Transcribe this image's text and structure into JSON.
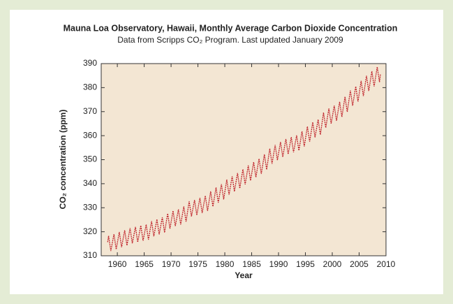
{
  "chart_data": {
    "type": "line",
    "title": "Mauna Loa Observatory, Hawaii, Monthly Average Carbon Dioxide Concentration",
    "subtitle": "Data from Scripps CO₂ Program.   Last updated January 2009",
    "x_label": "Year",
    "y_label": "CO₂ concentration (ppm)",
    "xlim": [
      1957,
      2010
    ],
    "xticks": [
      1960,
      1965,
      1970,
      1975,
      1980,
      1985,
      1990,
      1995,
      2000,
      2005,
      2010
    ],
    "ylim": [
      310,
      390
    ],
    "yticks": [
      310,
      320,
      330,
      340,
      350,
      360,
      370,
      380,
      390
    ],
    "color": "#c0262d",
    "x": [
      1958.2,
      1958.37,
      1958.79,
      1959.37,
      1959.79,
      1960.37,
      1960.79,
      1961.37,
      1961.79,
      1962.37,
      1962.79,
      1963.37,
      1963.79,
      1964.37,
      1964.79,
      1965.37,
      1965.79,
      1966.37,
      1966.79,
      1967.37,
      1967.79,
      1968.37,
      1968.79,
      1969.37,
      1969.79,
      1970.37,
      1970.79,
      1971.37,
      1971.79,
      1972.37,
      1972.79,
      1973.37,
      1973.79,
      1974.37,
      1974.79,
      1975.37,
      1975.79,
      1976.37,
      1976.79,
      1977.37,
      1977.79,
      1978.37,
      1978.79,
      1979.37,
      1979.79,
      1980.37,
      1980.79,
      1981.37,
      1981.79,
      1982.37,
      1982.79,
      1983.37,
      1983.79,
      1984.37,
      1984.79,
      1985.37,
      1985.79,
      1986.37,
      1986.79,
      1987.37,
      1987.79,
      1988.37,
      1988.79,
      1989.37,
      1989.79,
      1990.37,
      1990.79,
      1991.37,
      1991.79,
      1992.37,
      1992.79,
      1993.37,
      1993.79,
      1994.37,
      1994.79,
      1995.37,
      1995.79,
      1996.37,
      1996.79,
      1997.37,
      1997.79,
      1998.37,
      1998.79,
      1999.37,
      1999.79,
      2000.37,
      2000.79,
      2001.37,
      2001.79,
      2002.37,
      2002.79,
      2003.37,
      2003.79,
      2004.37,
      2004.79,
      2005.37,
      2005.79,
      2006.37,
      2006.79,
      2007.37,
      2007.79,
      2008.37,
      2008.79,
      2008.96
    ],
    "values": [
      315.7,
      318.3,
      312.0,
      319.0,
      312.7,
      319.9,
      313.6,
      320.6,
      314.3,
      321.5,
      315.2,
      322.0,
      315.7,
      322.6,
      316.3,
      323.0,
      316.7,
      324.4,
      318.1,
      325.2,
      318.9,
      326.0,
      319.7,
      327.6,
      321.3,
      328.7,
      322.4,
      329.3,
      323.0,
      330.5,
      324.2,
      332.7,
      326.4,
      333.2,
      326.9,
      334.1,
      327.8,
      335.0,
      328.7,
      336.8,
      330.5,
      338.4,
      332.1,
      339.8,
      333.5,
      341.7,
      335.4,
      343.1,
      336.8,
      344.4,
      338.1,
      346.0,
      339.7,
      347.6,
      341.3,
      349.0,
      342.7,
      350.4,
      344.1,
      352.2,
      345.9,
      354.6,
      348.3,
      356.1,
      349.8,
      357.4,
      351.1,
      358.6,
      352.3,
      359.4,
      353.1,
      360.1,
      353.8,
      361.8,
      355.5,
      363.8,
      357.5,
      365.6,
      359.3,
      366.7,
      360.4,
      369.6,
      363.3,
      371.3,
      365.0,
      372.5,
      366.2,
      374.1,
      367.8,
      376.2,
      369.9,
      378.8,
      372.5,
      380.5,
      374.2,
      382.8,
      376.5,
      384.9,
      378.6,
      386.8,
      380.5,
      388.6,
      382.3,
      385.5
    ]
  }
}
